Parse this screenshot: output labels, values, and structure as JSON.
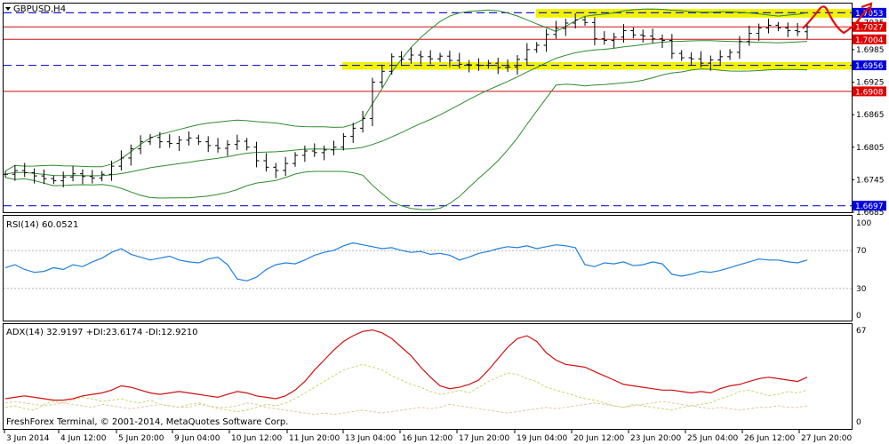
{
  "colors": {
    "background": "#ffffff",
    "grid": "#000000",
    "candles": "#000000",
    "bollinger": "#2e8b2e",
    "hline_dashed": "#1a1acc",
    "hline_red": "#cc1010",
    "highlight": "#f2f200",
    "rsi": "#1e7fe0",
    "adx": "#d01010",
    "plus_di": "#c8d870",
    "minus_di": "#e0c8a0",
    "badge_blue": "#0000e0",
    "badge_red": "#e00000",
    "arrow": "#e01010"
  },
  "main_panel": {
    "title": "GBPUSD,H4",
    "icon": "triangle-down-icon",
    "price_ticks": [
      "1.7035",
      "1.6985",
      "1.6925",
      "1.6865",
      "1.6805",
      "1.6745",
      "1.6685"
    ],
    "level_badges": [
      {
        "text": "1.7053",
        "color": "blue"
      },
      {
        "text": "1.7027",
        "color": "red"
      },
      {
        "text": "1.7004",
        "color": "red"
      },
      {
        "text": "1.6956",
        "color": "blue"
      },
      {
        "text": "1.6908",
        "color": "red"
      },
      {
        "text": "1.6697",
        "color": "blue"
      }
    ]
  },
  "rsi_panel": {
    "label": "RSI(14) 60.0521",
    "levels": [
      "100",
      "70",
      "30",
      "0"
    ]
  },
  "adx_panel": {
    "label": "ADX(14) 32.9197 +DI:23.6174 -DI:12.9210",
    "levels": [
      "67",
      "0"
    ],
    "footer": "FreshForex Terminal, © 2001-2014, MetaQuotes Software Corp."
  },
  "time_axis": [
    "3 Jun 2014",
    "4 Jun 12:00",
    "5 Jun 20:00",
    "9 Jun 04:00",
    "10 Jun 12:00",
    "11 Jun 20:00",
    "13 Jun 04:00",
    "16 Jun 12:00",
    "17 Jun 20:00",
    "19 Jun 04:00",
    "20 Jun 12:00",
    "23 Jun 20:00",
    "25 Jun 04:00",
    "26 Jun 12:00",
    "27 Jun 20:00"
  ],
  "chart_data": [
    {
      "type": "line",
      "title": "GBPUSD,H4",
      "series": [
        {
          "name": "GBPUSD,H4",
          "values": [
            1.6755,
            1.6762,
            1.6758,
            1.6752,
            1.6747,
            1.6743,
            1.675,
            1.6756,
            1.6751,
            1.6748,
            1.6755,
            1.677,
            1.6785,
            1.6802,
            1.6815,
            1.6823,
            1.6815,
            1.6812,
            1.6818,
            1.6822,
            1.6815,
            1.6808,
            1.6803,
            1.681,
            1.6816,
            1.6805,
            1.678,
            1.6768,
            1.6762,
            1.6775,
            1.679,
            1.6798,
            1.6795,
            1.68,
            1.6805,
            1.6825,
            1.684,
            1.6858,
            1.6925,
            1.6945,
            1.6972,
            1.6967,
            1.6975,
            1.6972,
            1.6968,
            1.6973,
            1.6965,
            1.6958,
            1.6957,
            1.6956,
            1.696,
            1.6952,
            1.6953,
            1.6967,
            1.6985,
            1.6993,
            1.7013,
            1.7024,
            1.7034,
            1.704,
            1.7035,
            1.7005,
            1.7002,
            1.7008,
            1.702,
            1.7012,
            1.701,
            1.7005,
            1.7002,
            1.6978,
            1.697,
            1.6968,
            1.696,
            1.6966,
            1.6972,
            1.698,
            1.7,
            1.7015,
            1.7025,
            1.703,
            1.7025,
            1.702,
            1.7018,
            1.7027
          ]
        }
      ],
      "ylim": [
        1.6685,
        1.707
      ],
      "horizontal_lines": [
        1.7053,
        1.7027,
        1.7004,
        1.6956,
        1.6908,
        1.6697
      ],
      "zones": [
        [
          1.7044,
          1.706
        ],
        [
          1.6948,
          1.6962
        ]
      ]
    },
    {
      "type": "line",
      "title": "RSI(14) 60.0521",
      "series": [
        {
          "name": "RSI(14)",
          "values": [
            52,
            55,
            50,
            47,
            48,
            52,
            50,
            55,
            53,
            58,
            62,
            68,
            72,
            66,
            63,
            60,
            62,
            64,
            60,
            58,
            57,
            61,
            63,
            55,
            40,
            38,
            42,
            50,
            55,
            57,
            56,
            60,
            65,
            68,
            70,
            75,
            78,
            76,
            74,
            72,
            73,
            70,
            68,
            69,
            66,
            67,
            65,
            60,
            63,
            67,
            69,
            72,
            74,
            73,
            75,
            72,
            74,
            76,
            75,
            73,
            55,
            53,
            57,
            56,
            58,
            54,
            55,
            58,
            56,
            45,
            43,
            45,
            48,
            47,
            49,
            52,
            55,
            58,
            61,
            60,
            60,
            58,
            57,
            60
          ]
        }
      ],
      "ylim": [
        0,
        100
      ],
      "levels": [
        70,
        30
      ]
    },
    {
      "type": "line",
      "title": "ADX(14) 32.9197 +DI:23.6174 -DI:12.9210",
      "series": [
        {
          "name": "ADX(14)",
          "values": [
            18,
            19,
            20,
            19,
            18,
            17,
            17,
            18,
            20,
            21,
            22,
            24,
            27,
            26,
            24,
            22,
            21,
            22,
            23,
            22,
            21,
            20,
            19,
            21,
            23,
            22,
            20,
            19,
            18,
            20,
            24,
            30,
            38,
            45,
            52,
            58,
            62,
            65,
            66,
            64,
            60,
            54,
            48,
            40,
            33,
            27,
            25,
            26,
            28,
            31,
            38,
            46,
            54,
            60,
            62,
            58,
            50,
            45,
            42,
            41,
            40,
            37,
            34,
            31,
            28,
            27,
            26,
            25,
            24,
            24,
            23,
            22,
            23,
            22,
            25,
            27,
            28,
            30,
            32,
            33,
            32,
            31,
            30,
            33
          ]
        },
        {
          "name": "+DI",
          "values": [
            12,
            13,
            11,
            10,
            14,
            16,
            15,
            17,
            19,
            18,
            16,
            17,
            18,
            16,
            15,
            17,
            14,
            13,
            12,
            14,
            15,
            13,
            11,
            10,
            9,
            10,
            12,
            14,
            13,
            15,
            18,
            22,
            26,
            30,
            34,
            38,
            40,
            42,
            40,
            38,
            34,
            31,
            28,
            26,
            23,
            21,
            22,
            24,
            22,
            26,
            30,
            33,
            36,
            35,
            32,
            30,
            26,
            24,
            22,
            20,
            18,
            17,
            15,
            13,
            12,
            14,
            13,
            12,
            11,
            10,
            12,
            13,
            14,
            15,
            18,
            20,
            23,
            24,
            22,
            20,
            21,
            23,
            22,
            24
          ]
        },
        {
          "name": "-DI",
          "values": [
            15,
            16,
            15,
            14,
            13,
            14,
            15,
            14,
            13,
            12,
            14,
            13,
            12,
            11,
            12,
            13,
            14,
            13,
            12,
            12,
            14,
            13,
            12,
            12,
            13,
            15,
            14,
            12,
            11,
            10,
            9,
            8,
            7,
            8,
            7,
            8,
            9,
            10,
            9,
            8,
            9,
            10,
            11,
            12,
            11,
            12,
            14,
            13,
            12,
            11,
            10,
            9,
            8,
            9,
            10,
            11,
            12,
            11,
            12,
            13,
            14,
            15,
            14,
            13,
            12,
            13,
            14,
            15,
            16,
            15,
            14,
            13,
            12,
            11,
            12,
            11,
            10,
            11,
            12,
            12,
            13,
            12,
            12,
            13
          ]
        }
      ],
      "ylim": [
        0,
        67
      ]
    }
  ]
}
